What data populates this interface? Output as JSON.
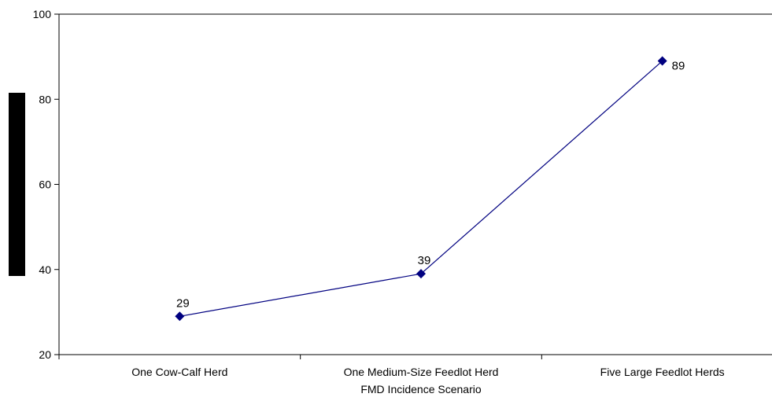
{
  "chart_data": {
    "type": "line",
    "title": "",
    "xlabel": "FMD Incidence Scenario",
    "ylabel": "",
    "categories": [
      "One Cow-Calf Herd",
      "One Medium-Size Feedlot Herd",
      "Five Large Feedlot Herds"
    ],
    "series": [
      {
        "values": [
          29,
          39,
          89
        ],
        "color": "#000080",
        "marker": "diamond"
      }
    ],
    "ylim": [
      20,
      100
    ],
    "yticks": [
      20,
      40,
      60,
      80,
      100
    ],
    "grid": false,
    "legend": "none"
  }
}
